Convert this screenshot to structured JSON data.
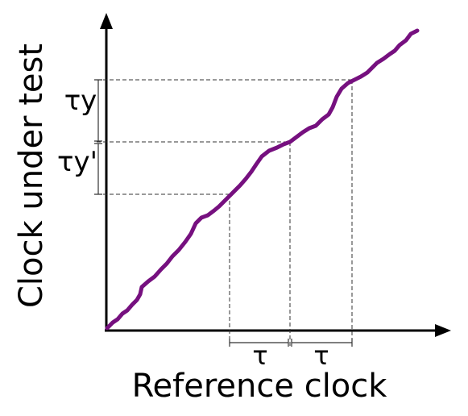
{
  "axes": {
    "y_label": "Clock under test",
    "x_label": "Reference clock"
  },
  "annotations": {
    "tau_y": "τy",
    "tau_y_prime": "τy'",
    "tau_1": "τ",
    "tau_2": "τ"
  }
}
